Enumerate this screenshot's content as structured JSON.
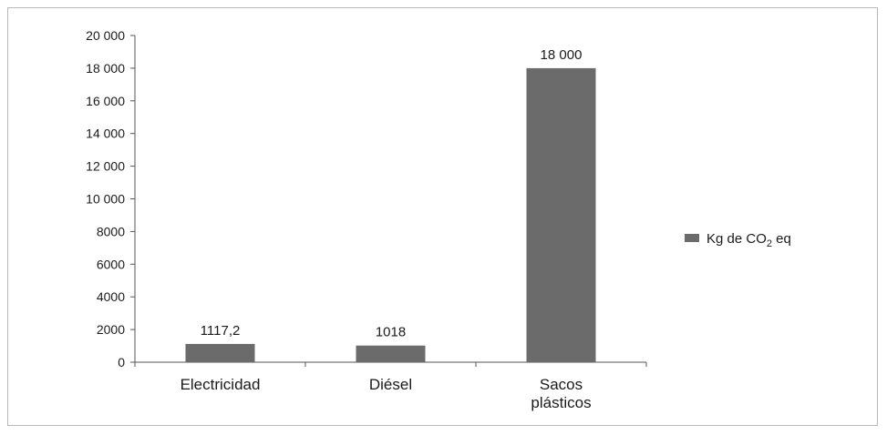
{
  "chart_data": {
    "type": "bar",
    "categories": [
      "Electricidad",
      "Diésel",
      "Sacos plásticos"
    ],
    "category_lines": [
      [
        "Electricidad"
      ],
      [
        "Diésel"
      ],
      [
        "Sacos",
        "plásticos"
      ]
    ],
    "values": [
      1117.2,
      1018,
      18000
    ],
    "data_labels": [
      "1117,2",
      "1018",
      "18 000"
    ],
    "y_tick_labels": [
      "0",
      "2000",
      "4000",
      "6000",
      "8000",
      "10 000",
      "12 000",
      "14 000",
      "16 000",
      "18 000",
      "20 000"
    ],
    "y_tick_values": [
      0,
      2000,
      4000,
      6000,
      8000,
      10000,
      12000,
      14000,
      16000,
      18000,
      20000
    ],
    "ylim": [
      0,
      20000
    ],
    "grid": false,
    "legend": {
      "position": "right",
      "label_main": "Kg de CO",
      "label_sub": "2",
      "label_tail": " eq"
    },
    "colors": {
      "bar": "#6b6b6b",
      "axis": "#555555"
    }
  }
}
